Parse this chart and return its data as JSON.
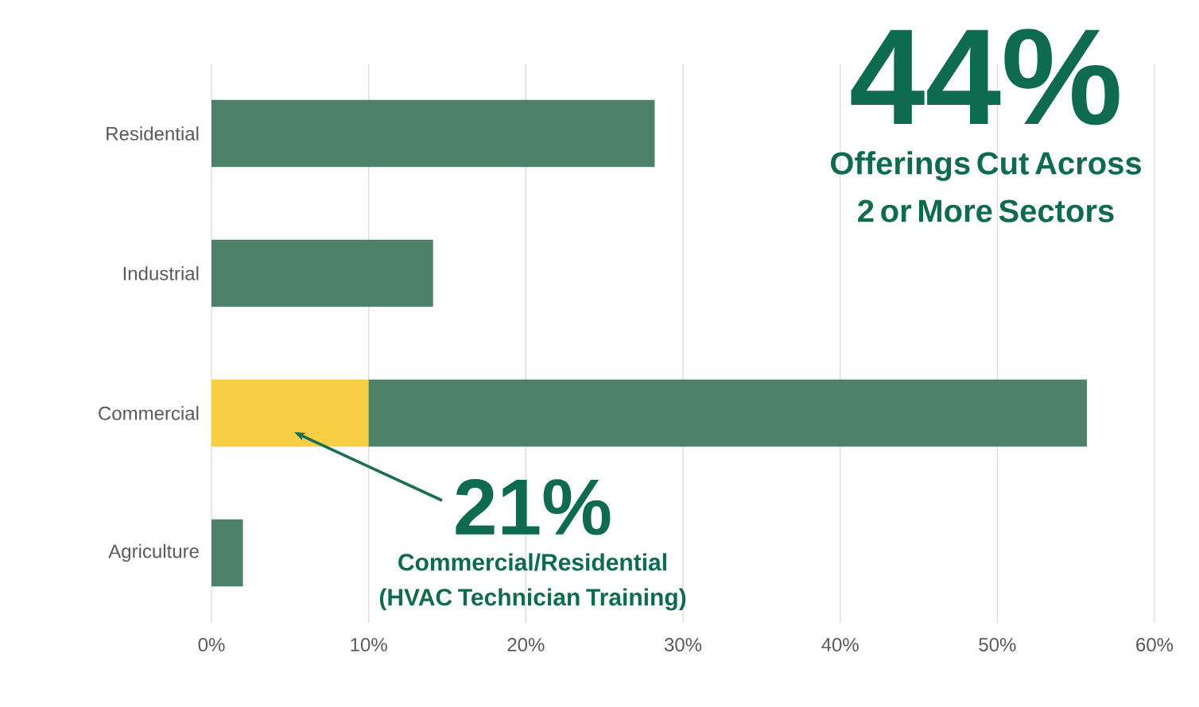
{
  "chart_data": {
    "type": "bar",
    "orientation": "horizontal",
    "stacked": true,
    "categories": [
      "Residential",
      "Industrial",
      "Commercial",
      "Agriculture"
    ],
    "series": [
      {
        "color": "#f7cf45",
        "values": [
          null,
          null,
          10,
          null
        ]
      },
      {
        "color": "#4f8069",
        "values": [
          28.2,
          14.1,
          45.7,
          2.0
        ]
      }
    ],
    "xlim": [
      0,
      60
    ],
    "xticks": [
      {
        "value": 0,
        "label": "0%"
      },
      {
        "value": 10,
        "label": "10%"
      },
      {
        "value": 20,
        "label": "20%"
      },
      {
        "value": 30,
        "label": "30%"
      },
      {
        "value": 40,
        "label": "40%"
      },
      {
        "value": 50,
        "label": "50%"
      },
      {
        "value": 60,
        "label": "60%"
      }
    ],
    "grid": "x",
    "annotations": [
      "44%",
      "Offerings Cut Across 2 or More Sectors",
      "21%",
      "Commercial/Residential (HVAC Technician Training)"
    ]
  }
}
